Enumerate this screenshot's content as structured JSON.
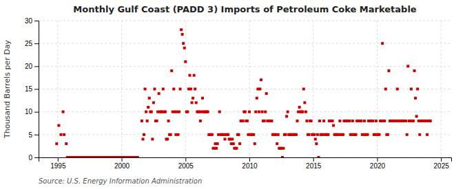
{
  "chart_data": {
    "type": "scatter",
    "title": "Monthly Gulf Coast (PADD 3) Imports of Petroleum Coke Marketable",
    "y_label": "Thousand Barrels per Day",
    "annotations": [
      "Source: U.S. Energy Information Administration"
    ],
    "color": "#cc0000",
    "marker": "square",
    "grid": true,
    "xlim": [
      1993.5,
      2025.8
    ],
    "xticks": [
      1995,
      2000,
      2005,
      2010,
      2015,
      2020,
      2025
    ],
    "ylim": [
      0,
      30
    ],
    "yticks": [
      0,
      5,
      10,
      15,
      20,
      25,
      30
    ],
    "x": [
      1994.917,
      1995.083,
      1995.25,
      1995.417,
      1995.5,
      1995.667,
      1995.75,
      1995.833,
      1995.917,
      1996.0,
      1996.083,
      1996.167,
      1996.25,
      1996.333,
      1996.417,
      1996.5,
      1996.583,
      1996.667,
      1996.75,
      1996.833,
      1996.917,
      1997.0,
      1997.083,
      1997.167,
      1997.25,
      1997.333,
      1997.417,
      1997.5,
      1997.583,
      1997.667,
      1997.75,
      1997.833,
      1997.917,
      1998.0,
      1998.083,
      1998.167,
      1998.25,
      1998.333,
      1998.417,
      1998.5,
      1998.583,
      1998.667,
      1998.75,
      1998.833,
      1998.917,
      1999.0,
      1999.083,
      1999.167,
      1999.25,
      1999.333,
      1999.417,
      1999.5,
      1999.583,
      1999.667,
      1999.75,
      1999.833,
      1999.917,
      2000.0,
      2000.083,
      2000.167,
      2000.25,
      2000.333,
      2000.417,
      2000.5,
      2000.583,
      2000.667,
      2000.75,
      2000.833,
      2000.917,
      2001.0,
      2001.083,
      2001.167,
      2001.25,
      2001.583,
      2001.667,
      2001.75,
      2001.833,
      2001.917,
      2002.0,
      2002.083,
      2002.167,
      2002.25,
      2002.333,
      2002.417,
      2002.5,
      2002.583,
      2002.667,
      2002.75,
      2002.833,
      2002.917,
      2003.0,
      2003.083,
      2003.167,
      2003.25,
      2003.333,
      2003.417,
      2003.5,
      2003.583,
      2003.667,
      2003.75,
      2003.833,
      2003.917,
      2004.0,
      2004.083,
      2004.167,
      2004.25,
      2004.333,
      2004.417,
      2004.5,
      2004.583,
      2004.667,
      2004.75,
      2004.833,
      2004.917,
      2005.0,
      2005.083,
      2005.167,
      2005.25,
      2005.333,
      2005.417,
      2005.5,
      2005.583,
      2005.667,
      2005.75,
      2005.833,
      2005.917,
      2006.0,
      2006.083,
      2006.167,
      2006.25,
      2006.333,
      2006.417,
      2006.5,
      2006.583,
      2006.667,
      2006.75,
      2006.833,
      2006.917,
      2007.0,
      2007.083,
      2007.167,
      2007.25,
      2007.333,
      2007.417,
      2007.5,
      2007.583,
      2007.667,
      2007.75,
      2007.833,
      2007.917,
      2008.0,
      2008.083,
      2008.167,
      2008.25,
      2008.333,
      2008.417,
      2008.5,
      2008.583,
      2008.667,
      2008.75,
      2008.833,
      2008.917,
      2009.0,
      2009.083,
      2009.167,
      2009.25,
      2009.333,
      2009.417,
      2009.5,
      2009.583,
      2009.667,
      2009.75,
      2009.833,
      2009.917,
      2010.0,
      2010.083,
      2010.167,
      2010.25,
      2010.333,
      2010.417,
      2010.5,
      2010.583,
      2010.667,
      2010.75,
      2010.833,
      2010.917,
      2011.0,
      2011.083,
      2011.167,
      2011.25,
      2011.333,
      2011.417,
      2011.5,
      2011.583,
      2011.667,
      2011.75,
      2011.833,
      2011.917,
      2012.0,
      2012.083,
      2012.167,
      2012.25,
      2012.333,
      2012.417,
      2012.5,
      2012.583,
      2012.667,
      2012.75,
      2012.833,
      2012.917,
      2013.0,
      2013.083,
      2013.167,
      2013.25,
      2013.333,
      2013.417,
      2013.5,
      2013.583,
      2013.667,
      2013.75,
      2013.833,
      2013.917,
      2014.0,
      2014.083,
      2014.167,
      2014.25,
      2014.333,
      2014.417,
      2014.5,
      2014.583,
      2014.667,
      2014.75,
      2014.833,
      2014.917,
      2015.0,
      2015.083,
      2015.167,
      2015.25,
      2015.333,
      2015.417,
      2015.5,
      2015.583,
      2015.667,
      2015.75,
      2015.833,
      2015.917,
      2016.0,
      2016.083,
      2016.167,
      2016.25,
      2016.333,
      2016.417,
      2016.5,
      2016.583,
      2016.667,
      2016.75,
      2016.833,
      2016.917,
      2017.0,
      2017.083,
      2017.167,
      2017.25,
      2017.333,
      2017.417,
      2017.5,
      2017.583,
      2017.667,
      2017.75,
      2017.833,
      2017.917,
      2018.0,
      2018.083,
      2018.167,
      2018.25,
      2018.333,
      2018.417,
      2018.5,
      2018.583,
      2018.667,
      2018.75,
      2018.833,
      2018.917,
      2019.0,
      2019.083,
      2019.167,
      2019.25,
      2019.333,
      2019.417,
      2019.5,
      2019.583,
      2019.667,
      2019.75,
      2019.833,
      2019.917,
      2020.0,
      2020.083,
      2020.167,
      2020.25,
      2020.333,
      2020.417,
      2020.5,
      2020.583,
      2020.667,
      2020.75,
      2020.833,
      2020.917,
      2021.0,
      2021.083,
      2021.167,
      2021.25,
      2021.333,
      2021.417,
      2021.5,
      2021.583,
      2021.667,
      2021.75,
      2021.833,
      2021.917,
      2022.0,
      2022.083,
      2022.167,
      2022.25,
      2022.333,
      2022.417,
      2022.5,
      2022.583,
      2022.667,
      2022.75,
      2022.833,
      2022.917,
      2023.0,
      2023.083,
      2023.167,
      2023.25,
      2023.333,
      2023.417,
      2023.5,
      2023.583,
      2023.667,
      2023.75,
      2023.833,
      2023.917,
      2024.0,
      2024.083,
      2024.167
    ],
    "values": [
      3,
      7,
      5,
      10,
      5,
      3,
      0,
      0,
      0,
      0,
      0,
      0,
      0,
      0,
      0,
      0,
      0,
      0,
      0,
      0,
      0,
      0,
      0,
      0,
      0,
      0,
      0,
      0,
      0,
      0,
      0,
      0,
      0,
      0,
      0,
      0,
      0,
      0,
      0,
      0,
      0,
      0,
      0,
      0,
      0,
      0,
      0,
      0,
      0,
      0,
      0,
      0,
      0,
      0,
      0,
      0,
      0,
      0,
      0,
      0,
      0,
      0,
      0,
      0,
      0,
      0,
      0,
      0,
      0,
      0,
      0,
      0,
      0,
      8,
      4,
      5,
      15,
      10,
      8,
      11,
      13,
      10,
      10,
      4,
      12,
      15,
      8,
      8,
      10,
      14,
      10,
      10,
      10,
      15,
      10,
      10,
      4,
      4,
      8,
      5,
      5,
      19,
      10,
      15,
      10,
      5,
      10,
      5,
      10,
      15,
      28,
      27,
      25,
      24,
      21,
      10,
      10,
      15,
      18,
      15,
      12,
      13,
      18,
      15,
      12,
      10,
      10,
      10,
      8,
      10,
      13,
      10,
      10,
      10,
      10,
      10,
      5,
      5,
      5,
      5,
      2,
      2,
      3,
      2,
      3,
      5,
      10,
      5,
      5,
      5,
      5,
      4,
      5,
      5,
      5,
      4,
      4,
      3,
      4,
      3,
      2,
      2,
      2,
      5,
      5,
      3,
      8,
      8,
      8,
      10,
      10,
      8,
      8,
      5,
      10,
      5,
      5,
      5,
      5,
      3,
      10,
      13,
      15,
      10,
      15,
      17,
      10,
      8,
      8,
      10,
      14,
      8,
      8,
      8,
      8,
      8,
      5,
      5,
      5,
      5,
      3,
      5,
      2,
      2,
      2,
      0,
      2,
      5,
      5,
      9,
      10,
      5,
      5,
      5,
      5,
      5,
      5,
      5,
      5,
      8,
      10,
      11,
      10,
      10,
      10,
      15,
      12,
      10,
      8,
      5,
      5,
      8,
      8,
      5,
      5,
      5,
      4,
      3,
      5,
      0,
      8,
      5,
      5,
      5,
      8,
      5,
      5,
      5,
      5,
      8,
      8,
      8,
      8,
      7,
      5,
      5,
      5,
      5,
      5,
      8,
      5,
      5,
      5,
      8,
      8,
      8,
      8,
      8,
      8,
      5,
      5,
      8,
      5,
      5,
      5,
      8,
      8,
      8,
      8,
      8,
      5,
      5,
      8,
      5,
      5,
      5,
      8,
      8,
      8,
      8,
      8,
      5,
      5,
      8,
      5,
      5,
      5,
      8,
      8,
      25,
      8,
      8,
      15,
      5,
      5,
      19,
      8,
      8,
      8,
      8,
      8,
      8,
      8,
      15,
      8,
      8,
      8,
      8,
      8,
      8,
      8,
      8,
      5,
      20,
      8,
      8,
      15,
      8,
      8,
      19,
      13,
      9,
      15,
      8,
      5,
      8,
      8,
      8,
      8,
      8,
      8,
      5,
      8,
      8,
      8
    ]
  }
}
